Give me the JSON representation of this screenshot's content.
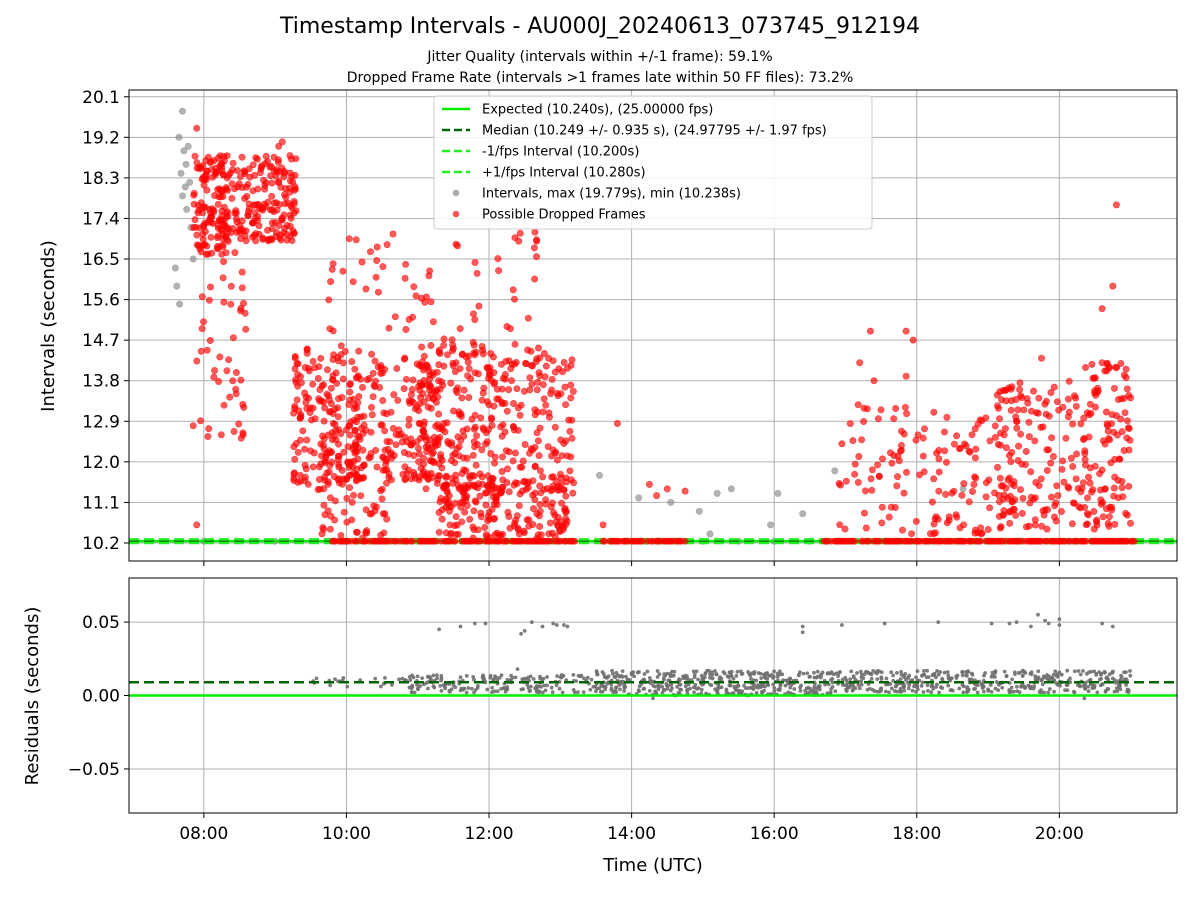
{
  "title": "Timestamp Intervals - AU000J_20240613_073745_912194",
  "subtitle1": "Jitter Quality (intervals within +/-1 frame): 59.1%",
  "subtitle2": "Dropped Frame Rate (intervals >1 frames late within 50 FF files): 73.2%",
  "colors": {
    "expected": "#00ee00",
    "median": "#006400",
    "interval_lines": "#22ee22",
    "intervals": "#808080",
    "dropped": "#ff0000",
    "grid": "#b0b0b0"
  },
  "chart_data": [
    {
      "type": "scatter",
      "ylabel": "Intervals (seconds)",
      "xlim": [
        6.95,
        21.65
      ],
      "ylim": [
        9.8,
        20.25
      ],
      "grid": true,
      "legend_position": "top-center",
      "x_ticks": [
        8,
        10,
        12,
        14,
        16,
        18,
        20
      ],
      "y_ticks": [
        10.2,
        11.1,
        12.0,
        12.9,
        13.8,
        14.7,
        15.6,
        16.5,
        17.4,
        18.3,
        19.2,
        20.1
      ],
      "y_tick_labels": [
        "10.2",
        "11.1",
        "12.0",
        "12.9",
        "13.8",
        "14.7",
        "15.6",
        "16.5",
        "17.4",
        "18.3",
        "19.2",
        "20.1"
      ],
      "reference_lines": [
        {
          "name": "Expected (10.240s), (25.00000 fps)",
          "y": 10.24,
          "style": "solid",
          "color": "#00ee00"
        },
        {
          "name": "Median (10.249 +/- 0.935 s), (24.97795 +/- 1.97 fps)",
          "y": 10.249,
          "style": "dashed",
          "color": "#006400"
        },
        {
          "name": "-1/fps Interval (10.200s)",
          "y": 10.2,
          "style": "dashed",
          "color": "#22ee22"
        },
        {
          "name": "+1/fps Interval (10.280s)",
          "y": 10.28,
          "style": "dashed",
          "color": "#22ee22"
        }
      ],
      "series": [
        {
          "name": "Intervals, max (19.779s), min (10.238s)",
          "color": "#808080",
          "points": [
            [
              7.7,
              19.78
            ],
            [
              7.65,
              19.2
            ],
            [
              7.72,
              18.9
            ],
            [
              7.75,
              18.6
            ],
            [
              7.68,
              18.4
            ],
            [
              7.8,
              18.2
            ],
            [
              7.7,
              17.9
            ],
            [
              7.76,
              17.6
            ],
            [
              7.82,
              17.2
            ],
            [
              7.6,
              16.3
            ],
            [
              7.62,
              15.9
            ],
            [
              7.66,
              15.5
            ],
            [
              7.85,
              16.5
            ],
            [
              7.78,
              19.0
            ],
            [
              7.74,
              18.1
            ],
            [
              13.55,
              11.7
            ],
            [
              14.1,
              11.2
            ],
            [
              14.55,
              11.1
            ],
            [
              14.95,
              10.9
            ],
            [
              15.2,
              11.3
            ],
            [
              15.4,
              11.4
            ],
            [
              15.1,
              10.4
            ],
            [
              15.95,
              10.6
            ],
            [
              16.05,
              11.3
            ],
            [
              16.4,
              10.85
            ],
            [
              16.85,
              11.8
            ],
            [
              18.65,
              11.4
            ],
            [
              8.0,
              10.24
            ],
            [
              9.0,
              10.24
            ],
            [
              10.0,
              10.24
            ],
            [
              11.0,
              10.24
            ],
            [
              13.7,
              10.24
            ],
            [
              14.2,
              10.24
            ],
            [
              15.0,
              10.24
            ],
            [
              15.5,
              10.24
            ],
            [
              16.0,
              10.24
            ],
            [
              16.5,
              10.24
            ]
          ]
        },
        {
          "name": "Possible Dropped Frames",
          "color": "#ff0000",
          "generated": true,
          "clusters": [
            {
              "x": [
                7.85,
                8.45
              ],
              "y": [
                16.6,
                18.8
              ],
              "n": 150
            },
            {
              "x": [
                8.45,
                9.3
              ],
              "y": [
                16.9,
                18.8
              ],
              "n": 160
            },
            {
              "x": [
                7.9,
                8.6
              ],
              "y": [
                12.5,
                16.6
              ],
              "n": 45
            },
            {
              "x": [
                9.25,
                10.2
              ],
              "y": [
                11.5,
                14.6
              ],
              "n": 170
            },
            {
              "x": [
                9.6,
                10.6
              ],
              "y": [
                10.3,
                12.6
              ],
              "n": 70
            },
            {
              "x": [
                10.0,
                11.3
              ],
              "y": [
                11.6,
                14.4
              ],
              "n": 170
            },
            {
              "x": [
                11.0,
                12.1
              ],
              "y": [
                11.4,
                14.6
              ],
              "n": 200
            },
            {
              "x": [
                11.3,
                12.2
              ],
              "y": [
                10.3,
                11.7
              ],
              "n": 90
            },
            {
              "x": [
                12.1,
                13.2
              ],
              "y": [
                11.3,
                14.3
              ],
              "n": 150
            },
            {
              "x": [
                12.0,
                13.1
              ],
              "y": [
                10.3,
                11.6
              ],
              "n": 80
            },
            {
              "x": [
                9.7,
                12.8
              ],
              "y": [
                14.3,
                17.2
              ],
              "n": 75
            },
            {
              "x": [
                16.9,
                18.3
              ],
              "y": [
                10.4,
                13.3
              ],
              "n": 70
            },
            {
              "x": [
                18.2,
                19.4
              ],
              "y": [
                10.4,
                13.0
              ],
              "n": 70
            },
            {
              "x": [
                19.1,
                20.3
              ],
              "y": [
                10.5,
                13.8
              ],
              "n": 140
            },
            {
              "x": [
                20.3,
                21.0
              ],
              "y": [
                10.5,
                14.2
              ],
              "n": 120
            }
          ],
          "points": [
            [
              7.9,
              10.6
            ],
            [
              7.85,
              12.8
            ],
            [
              7.9,
              19.4
            ],
            [
              9.1,
              19.1
            ],
            [
              9.05,
              19.0
            ],
            [
              8.55,
              12.6
            ],
            [
              13.8,
              12.85
            ],
            [
              14.25,
              11.5
            ],
            [
              14.35,
              11.25
            ],
            [
              14.5,
              11.4
            ],
            [
              14.75,
              11.35
            ],
            [
              13.6,
              10.6
            ],
            [
              16.95,
              12.4
            ],
            [
              17.35,
              14.9
            ],
            [
              17.85,
              14.9
            ],
            [
              17.95,
              14.7
            ],
            [
              17.4,
              13.8
            ],
            [
              17.2,
              14.2
            ],
            [
              17.85,
              13.9
            ],
            [
              20.8,
              17.7
            ],
            [
              20.75,
              15.9
            ],
            [
              20.6,
              15.4
            ],
            [
              19.75,
              14.3
            ],
            [
              20.6,
              14.2
            ]
          ]
        }
      ]
    },
    {
      "type": "scatter",
      "xlabel": "Time (UTC)",
      "ylabel": "Residuals (seconds)",
      "xlim": [
        6.95,
        21.65
      ],
      "ylim": [
        -0.08,
        0.08
      ],
      "grid": true,
      "x_ticks": [
        8,
        10,
        12,
        14,
        16,
        18,
        20
      ],
      "x_tick_labels": [
        "08:00",
        "10:00",
        "12:00",
        "14:00",
        "16:00",
        "18:00",
        "20:00"
      ],
      "y_ticks": [
        0.05,
        0.0,
        -0.05
      ],
      "y_tick_labels": [
        "0.05",
        "0.00",
        "−0.05"
      ],
      "reference_lines": [
        {
          "y": 0.0,
          "style": "solid",
          "color": "#00ee00"
        },
        {
          "y": 0.009,
          "style": "dashed",
          "color": "#006400"
        }
      ],
      "series": [
        {
          "color": "#707070",
          "generated": true,
          "clusters": [
            {
              "x": [
                9.5,
                10.8
              ],
              "y": [
                0.006,
                0.012
              ],
              "n": 20
            },
            {
              "x": [
                10.8,
                13.5
              ],
              "y": [
                0.002,
                0.014
              ],
              "n": 180
            },
            {
              "x": [
                13.5,
                16.8
              ],
              "y": [
                0.0,
                0.017
              ],
              "n": 420
            },
            {
              "x": [
                16.8,
                21.0
              ],
              "y": [
                0.002,
                0.017
              ],
              "n": 420
            }
          ],
          "points": [
            [
              11.3,
              0.045
            ],
            [
              11.6,
              0.047
            ],
            [
              11.8,
              0.049
            ],
            [
              11.95,
              0.049
            ],
            [
              12.45,
              0.042
            ],
            [
              12.5,
              0.044
            ],
            [
              12.75,
              0.047
            ],
            [
              12.9,
              0.049
            ],
            [
              12.95,
              0.048
            ],
            [
              13.05,
              0.048
            ],
            [
              13.1,
              0.047
            ],
            [
              12.6,
              0.05
            ],
            [
              12.4,
              0.018
            ],
            [
              16.4,
              0.047
            ],
            [
              16.4,
              0.043
            ],
            [
              16.95,
              0.048
            ],
            [
              17.55,
              0.049
            ],
            [
              18.3,
              0.05
            ],
            [
              19.3,
              0.049
            ],
            [
              19.4,
              0.05
            ],
            [
              19.7,
              0.055
            ],
            [
              19.8,
              0.051
            ],
            [
              19.85,
              0.049
            ],
            [
              20.0,
              0.052
            ],
            [
              20.0,
              0.048
            ],
            [
              20.6,
              0.049
            ],
            [
              20.75,
              0.047
            ],
            [
              19.05,
              0.049
            ],
            [
              19.6,
              0.047
            ],
            [
              20.35,
              -0.002
            ],
            [
              14.3,
              -0.002
            ]
          ]
        }
      ]
    }
  ]
}
